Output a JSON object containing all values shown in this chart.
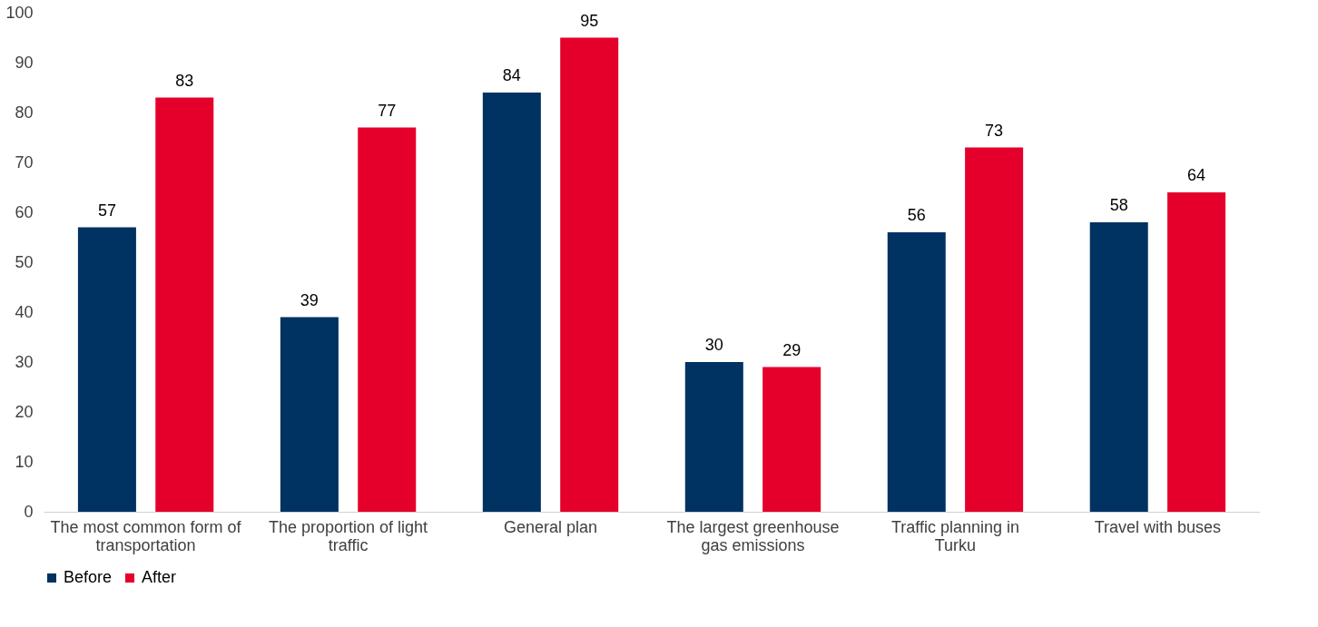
{
  "chart_data": {
    "type": "bar",
    "categories": [
      "The most common form of transportation",
      "The proportion of light traffic",
      "General plan",
      "The largest greenhouse gas emissions",
      "Traffic planning in Turku",
      "Travel with buses"
    ],
    "series": [
      {
        "name": "Before",
        "color": "#003262",
        "values": [
          57,
          39,
          84,
          30,
          56,
          58
        ]
      },
      {
        "name": "After",
        "color": "#e4002b",
        "values": [
          83,
          77,
          95,
          29,
          73,
          64
        ]
      }
    ],
    "ylim": [
      0,
      100
    ],
    "yticks": [
      0,
      10,
      20,
      30,
      40,
      50,
      60,
      70,
      80,
      90,
      100
    ],
    "grid": false,
    "legend": "bottom",
    "data_labels": true
  }
}
